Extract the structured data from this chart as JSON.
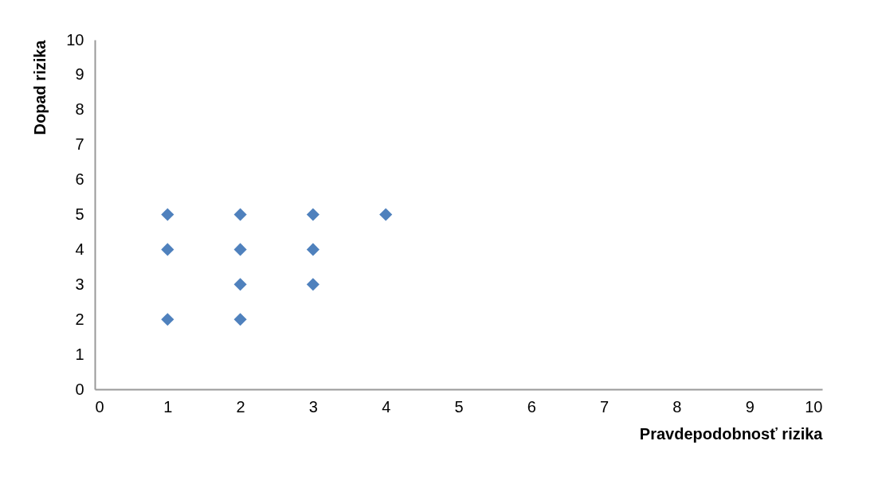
{
  "chart_data": {
    "type": "scatter",
    "xlabel": "Pravdepodobnosť rizika",
    "ylabel": "Dopad rizika",
    "x": [
      1,
      1,
      1,
      2,
      2,
      2,
      2,
      3,
      3,
      3,
      4
    ],
    "series": [
      {
        "color": "#4f81bd",
        "values": [
          5,
          4,
          2,
          5,
          4,
          3,
          2,
          5,
          4,
          3,
          5
        ]
      }
    ],
    "xlim": [
      0,
      10
    ],
    "ylim": [
      0,
      10
    ],
    "xticks": [
      0,
      1,
      2,
      3,
      4,
      5,
      6,
      7,
      8,
      9,
      10
    ],
    "yticks": [
      0,
      1,
      2,
      3,
      4,
      5,
      6,
      7,
      8,
      9,
      10
    ],
    "grid": false,
    "marker": "diamond"
  }
}
